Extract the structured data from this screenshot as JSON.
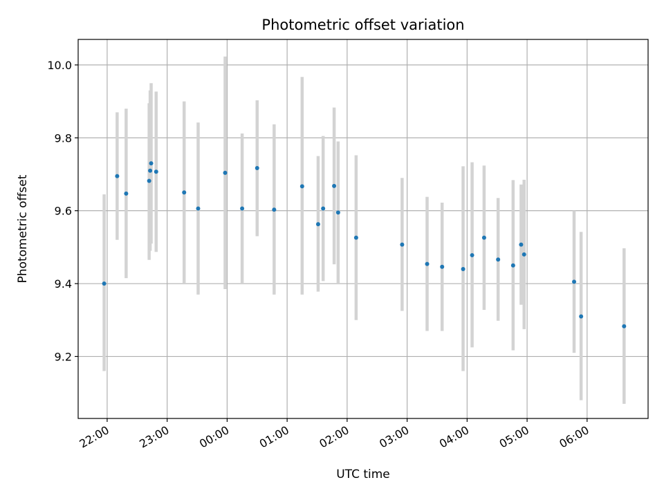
{
  "chart_data": {
    "type": "scatter",
    "title": "Photometric offset variation",
    "xlabel": "UTC time",
    "ylabel": "Photometric offset",
    "x_tick_labels": [
      "22:00",
      "23:00",
      "00:00",
      "01:00",
      "02:00",
      "03:00",
      "04:00",
      "05:00",
      "06:00"
    ],
    "y_tick_labels": [
      "9.2",
      "9.4",
      "9.6",
      "9.8",
      "10.0"
    ],
    "y_ticks": [
      9.2,
      9.4,
      9.6,
      9.8,
      10.0
    ],
    "xlim": [
      "21:31",
      "07:01"
    ],
    "ylim": [
      9.03,
      10.07
    ],
    "grid": true,
    "colors": {
      "point": "#1f77b4",
      "errorbar": "#d3d3d3",
      "grid": "#b0b0b0"
    },
    "points": [
      {
        "t": "21:57",
        "y": 9.4,
        "lo": 9.16,
        "hi": 9.645
      },
      {
        "t": "22:10",
        "y": 9.695,
        "lo": 9.52,
        "hi": 9.87
      },
      {
        "t": "22:19",
        "y": 9.647,
        "lo": 9.415,
        "hi": 9.88
      },
      {
        "t": "22:42",
        "y": 9.682,
        "lo": 9.465,
        "hi": 9.895
      },
      {
        "t": "22:43",
        "y": 9.71,
        "lo": 9.49,
        "hi": 9.93
      },
      {
        "t": "22:44",
        "y": 9.73,
        "lo": 9.51,
        "hi": 9.95
      },
      {
        "t": "22:49",
        "y": 9.707,
        "lo": 9.487,
        "hi": 9.927
      },
      {
        "t": "23:17",
        "y": 9.65,
        "lo": 9.4,
        "hi": 9.9
      },
      {
        "t": "23:31",
        "y": 9.606,
        "lo": 9.37,
        "hi": 9.842
      },
      {
        "t": "23:58",
        "y": 9.704,
        "lo": 9.385,
        "hi": 10.023
      },
      {
        "t": "00:15",
        "y": 9.606,
        "lo": 9.4,
        "hi": 9.812
      },
      {
        "t": "00:30",
        "y": 9.717,
        "lo": 9.53,
        "hi": 9.903
      },
      {
        "t": "00:47",
        "y": 9.603,
        "lo": 9.37,
        "hi": 9.837
      },
      {
        "t": "01:15",
        "y": 9.667,
        "lo": 9.37,
        "hi": 9.967
      },
      {
        "t": "01:31",
        "y": 9.563,
        "lo": 9.378,
        "hi": 9.75
      },
      {
        "t": "01:36",
        "y": 9.606,
        "lo": 9.407,
        "hi": 9.805
      },
      {
        "t": "01:47",
        "y": 9.668,
        "lo": 9.453,
        "hi": 9.883
      },
      {
        "t": "01:51",
        "y": 9.595,
        "lo": 9.4,
        "hi": 9.79
      },
      {
        "t": "02:09",
        "y": 9.526,
        "lo": 9.3,
        "hi": 9.752
      },
      {
        "t": "02:55",
        "y": 9.507,
        "lo": 9.325,
        "hi": 9.69
      },
      {
        "t": "03:20",
        "y": 9.454,
        "lo": 9.27,
        "hi": 9.638
      },
      {
        "t": "03:35",
        "y": 9.446,
        "lo": 9.27,
        "hi": 9.622
      },
      {
        "t": "03:56",
        "y": 9.44,
        "lo": 9.16,
        "hi": 9.722
      },
      {
        "t": "04:05",
        "y": 9.478,
        "lo": 9.225,
        "hi": 9.733
      },
      {
        "t": "04:17",
        "y": 9.526,
        "lo": 9.328,
        "hi": 9.724
      },
      {
        "t": "04:31",
        "y": 9.466,
        "lo": 9.298,
        "hi": 9.635
      },
      {
        "t": "04:46",
        "y": 9.45,
        "lo": 9.217,
        "hi": 9.684
      },
      {
        "t": "04:54",
        "y": 9.507,
        "lo": 9.342,
        "hi": 9.672
      },
      {
        "t": "04:57",
        "y": 9.48,
        "lo": 9.275,
        "hi": 9.685
      },
      {
        "t": "05:47",
        "y": 9.405,
        "lo": 9.21,
        "hi": 9.6
      },
      {
        "t": "05:54",
        "y": 9.31,
        "lo": 9.08,
        "hi": 9.542
      },
      {
        "t": "06:37",
        "y": 9.283,
        "lo": 9.07,
        "hi": 9.497
      }
    ]
  }
}
